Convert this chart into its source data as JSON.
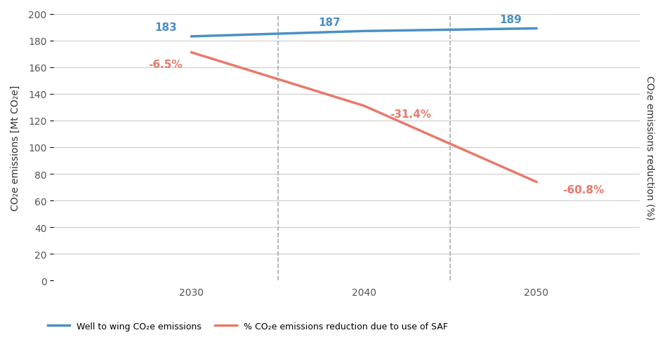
{
  "years": [
    2030,
    2040,
    2050
  ],
  "blue_values": [
    183,
    187,
    189
  ],
  "blue_labels": [
    "183",
    "187",
    "189"
  ],
  "red_values": [
    171,
    131,
    74
  ],
  "red_labels": [
    "-6.5%",
    "-31.4%",
    "-60.8%"
  ],
  "blue_color": "#4a90c4",
  "red_color": "#e8796a",
  "ylim_left": [
    0,
    200
  ],
  "yticks_left": [
    0,
    20,
    40,
    60,
    80,
    100,
    120,
    140,
    160,
    180,
    200
  ],
  "ylabel_left": "CO₂e emissions [Mt CO₂e]",
  "ylabel_right": "CO₂e emissions reduction (%)",
  "legend_blue": "Well to wing CO₂e emissions",
  "legend_red": "% CO₂e emissions reduction due to use of SAF",
  "background_color": "#ffffff",
  "grid_color": "#cccccc",
  "vline_x": [
    2035,
    2045
  ],
  "xlim": [
    2022,
    2056
  ]
}
